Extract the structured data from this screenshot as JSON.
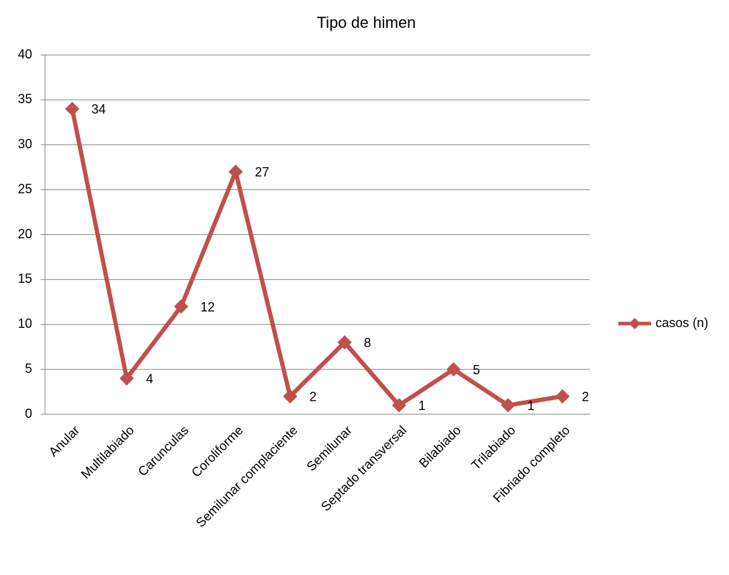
{
  "chart_data": {
    "type": "line",
    "title": "Tipo de himen",
    "categories": [
      "Anular",
      "Multilabiado",
      "Carunculas",
      "Coroliforme",
      "Semilunar complaciente",
      "Semilunar",
      "Septado transversal",
      "Bilabiado",
      "Trilabiado",
      "Fibriado completo"
    ],
    "series": [
      {
        "name": "casos (n)",
        "color": "#c0504d",
        "values": [
          34,
          4,
          12,
          27,
          2,
          8,
          1,
          5,
          1,
          2
        ]
      }
    ],
    "ylim": [
      0,
      40
    ],
    "yticks": [
      0,
      5,
      10,
      15,
      20,
      25,
      30,
      35,
      40
    ],
    "grid": true,
    "legend": "right"
  }
}
